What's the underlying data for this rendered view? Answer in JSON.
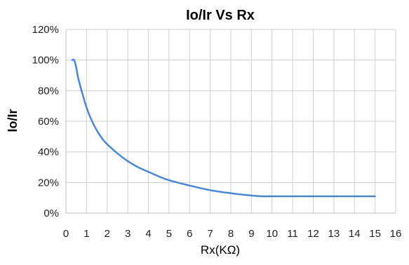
{
  "chart_data": {
    "type": "line",
    "title": "Io/Ir Vs Rx",
    "xlabel": "Rx(KΩ)",
    "ylabel": "Io/Ir",
    "xlim": [
      0,
      16
    ],
    "ylim": [
      0,
      120
    ],
    "x_ticks": [
      "0",
      "1",
      "2",
      "3",
      "4",
      "5",
      "6",
      "7",
      "8",
      "9",
      "10",
      "11",
      "12",
      "13",
      "14",
      "15",
      "16"
    ],
    "y_ticks": [
      "0%",
      "20%",
      "40%",
      "60%",
      "80%",
      "100%",
      "120%"
    ],
    "grid": true,
    "legend": "none",
    "series": [
      {
        "color": "#4a86d8",
        "x": [
          0.3,
          0.4,
          0.5,
          0.6,
          0.8,
          1.0,
          1.2,
          1.5,
          1.8,
          2.0,
          2.5,
          3.0,
          3.5,
          4.0,
          4.5,
          5.0,
          6.0,
          7.0,
          8.0,
          9.0,
          9.5,
          10.0,
          11.0,
          12.0,
          13.0,
          14.0,
          15.0
        ],
        "y": [
          100,
          100,
          95,
          88,
          78,
          69,
          62,
          54,
          48,
          45,
          39,
          34,
          30,
          27,
          24,
          21.5,
          18,
          15,
          13,
          11.5,
          11,
          11,
          11,
          11,
          11,
          11,
          11
        ]
      }
    ]
  }
}
